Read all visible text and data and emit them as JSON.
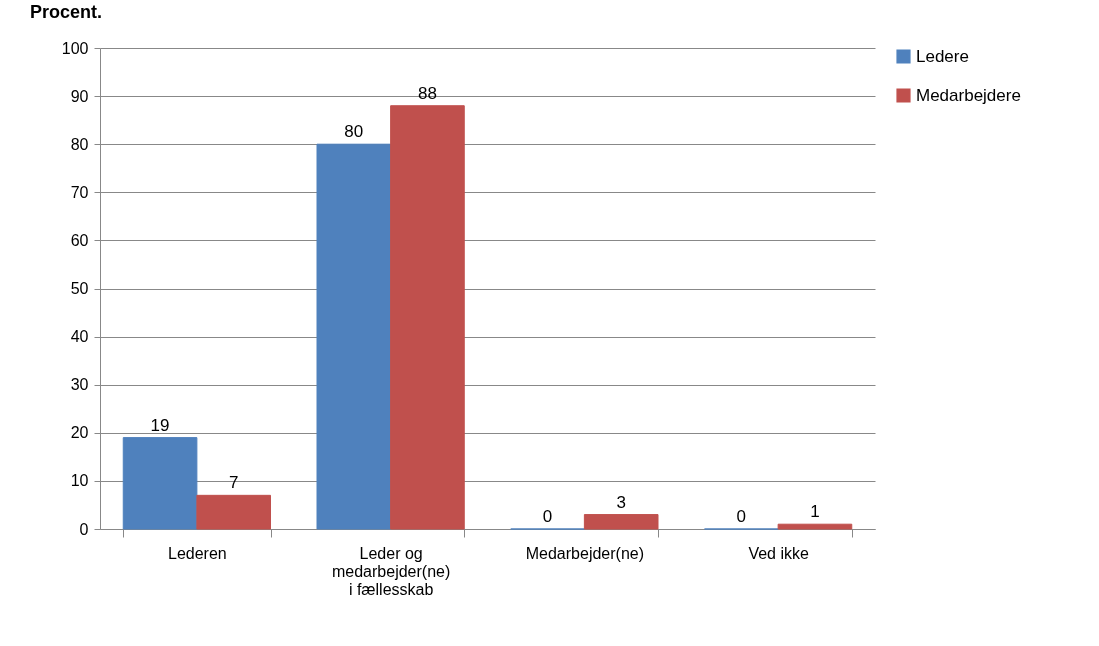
{
  "chart_data": {
    "type": "bar",
    "title": "Procent.",
    "categories": [
      "Lederen",
      "Leder og medarbejder(ne) i fællesskab",
      "Medarbejder(ne)",
      "Ved ikke"
    ],
    "series": [
      {
        "name": "Ledere",
        "color": "#4f81bd",
        "values": [
          19,
          80,
          0,
          0
        ]
      },
      {
        "name": "Medarbejdere",
        "color": "#c0504d",
        "values": [
          7,
          88,
          3,
          1
        ]
      }
    ],
    "ylim": [
      0,
      100
    ],
    "yticks": [
      0,
      10,
      20,
      30,
      40,
      50,
      60,
      70,
      80,
      90,
      100
    ],
    "grid": "y",
    "legend": "right",
    "data_labels": true
  }
}
